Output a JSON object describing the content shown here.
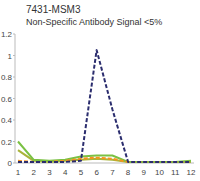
{
  "chart_data": {
    "type": "line",
    "title": "7431-MSM3",
    "subtitle": "Non-Specific Antibody Signal <5%",
    "categories": [
      "1",
      "2",
      "3",
      "4",
      "5",
      "6",
      "7",
      "8",
      "9",
      "10",
      "11",
      "12"
    ],
    "ylim": [
      0,
      1.2
    ],
    "yticks": [
      0,
      0.2,
      0.4,
      0.6,
      0.8,
      1,
      1.2
    ],
    "grid": false,
    "series": [
      {
        "color": "#a9b43a",
        "line_style": "solid",
        "values": [
          0.12,
          0.02,
          0.01,
          0.02,
          0.03,
          0.04,
          0.03,
          0.01,
          0.01,
          0.01,
          0.01,
          0.01
        ]
      },
      {
        "color": "#7ac143",
        "line_style": "solid",
        "values": [
          0.2,
          0.03,
          0.02,
          0.03,
          0.06,
          0.07,
          0.07,
          0.01,
          0.01,
          0.01,
          0.01,
          0.02
        ]
      },
      {
        "color": "#f7941d",
        "line_style": "dashed",
        "values": [
          0.02,
          0.01,
          0.01,
          0.02,
          0.04,
          0.05,
          0.04,
          0.01,
          0.01,
          0.01,
          0.01,
          0.01
        ]
      },
      {
        "color": "#2b2d6e",
        "line_style": "dashed",
        "values": [
          0.01,
          0.01,
          0.01,
          0.01,
          0.02,
          1.05,
          0.5,
          0.01,
          0.01,
          0.01,
          0.01,
          0.01
        ]
      }
    ]
  }
}
